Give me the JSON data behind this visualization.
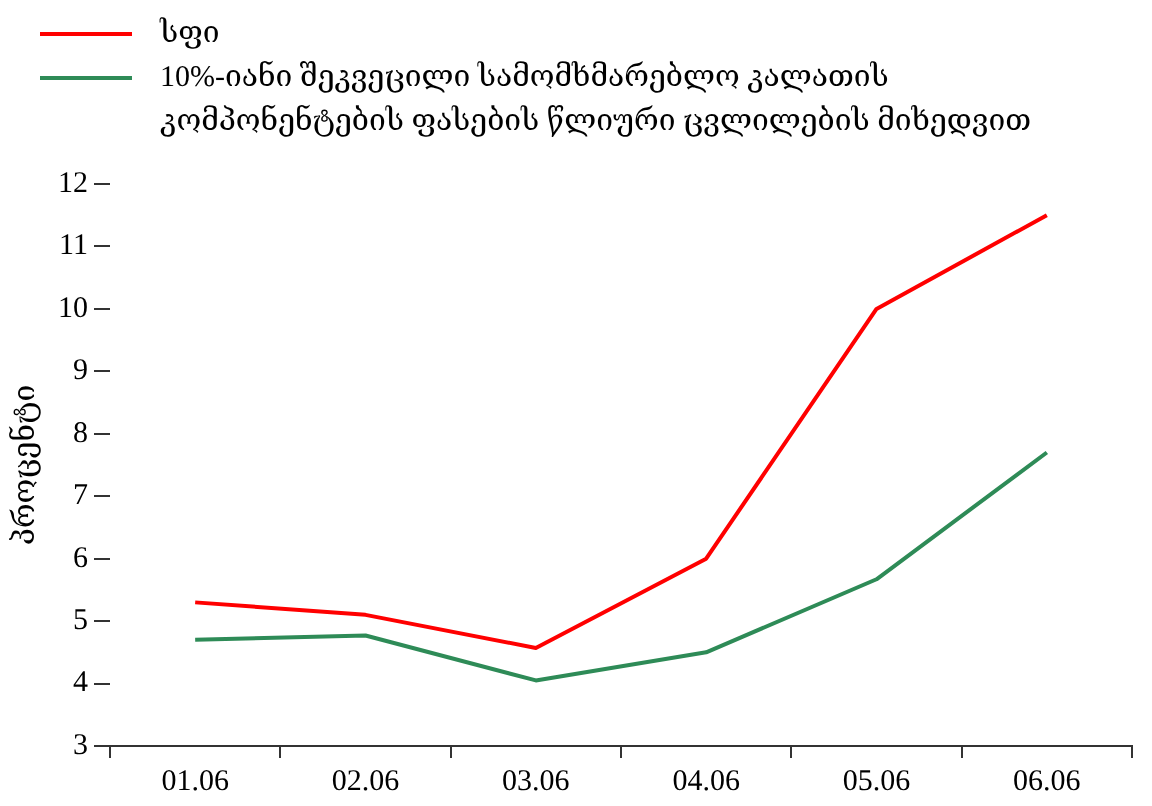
{
  "chart_data": {
    "type": "line",
    "ylabel": "პროცენტი",
    "categories": [
      "01.06",
      "02.06",
      "03.06",
      "04.06",
      "05.06",
      "06.06"
    ],
    "series": [
      {
        "name": "სფი",
        "color": "#ff0000",
        "values": [
          5.3,
          5.1,
          4.57,
          6.0,
          10.0,
          11.5
        ]
      },
      {
        "name": "10%-იანი შეკვეცილი სამომხმარებლო კალათის კომპონენტების ფასების წლიური ცვლილების მიხედვით",
        "color": "#2e8b57",
        "values": [
          4.7,
          4.77,
          4.05,
          4.5,
          5.67,
          7.7
        ]
      }
    ],
    "ylim": [
      3,
      12
    ],
    "yticks": [
      3,
      4,
      5,
      6,
      7,
      8,
      9,
      10,
      11,
      12
    ],
    "grid": false,
    "legend": "top left",
    "marker": "none",
    "line_style": "solid"
  }
}
